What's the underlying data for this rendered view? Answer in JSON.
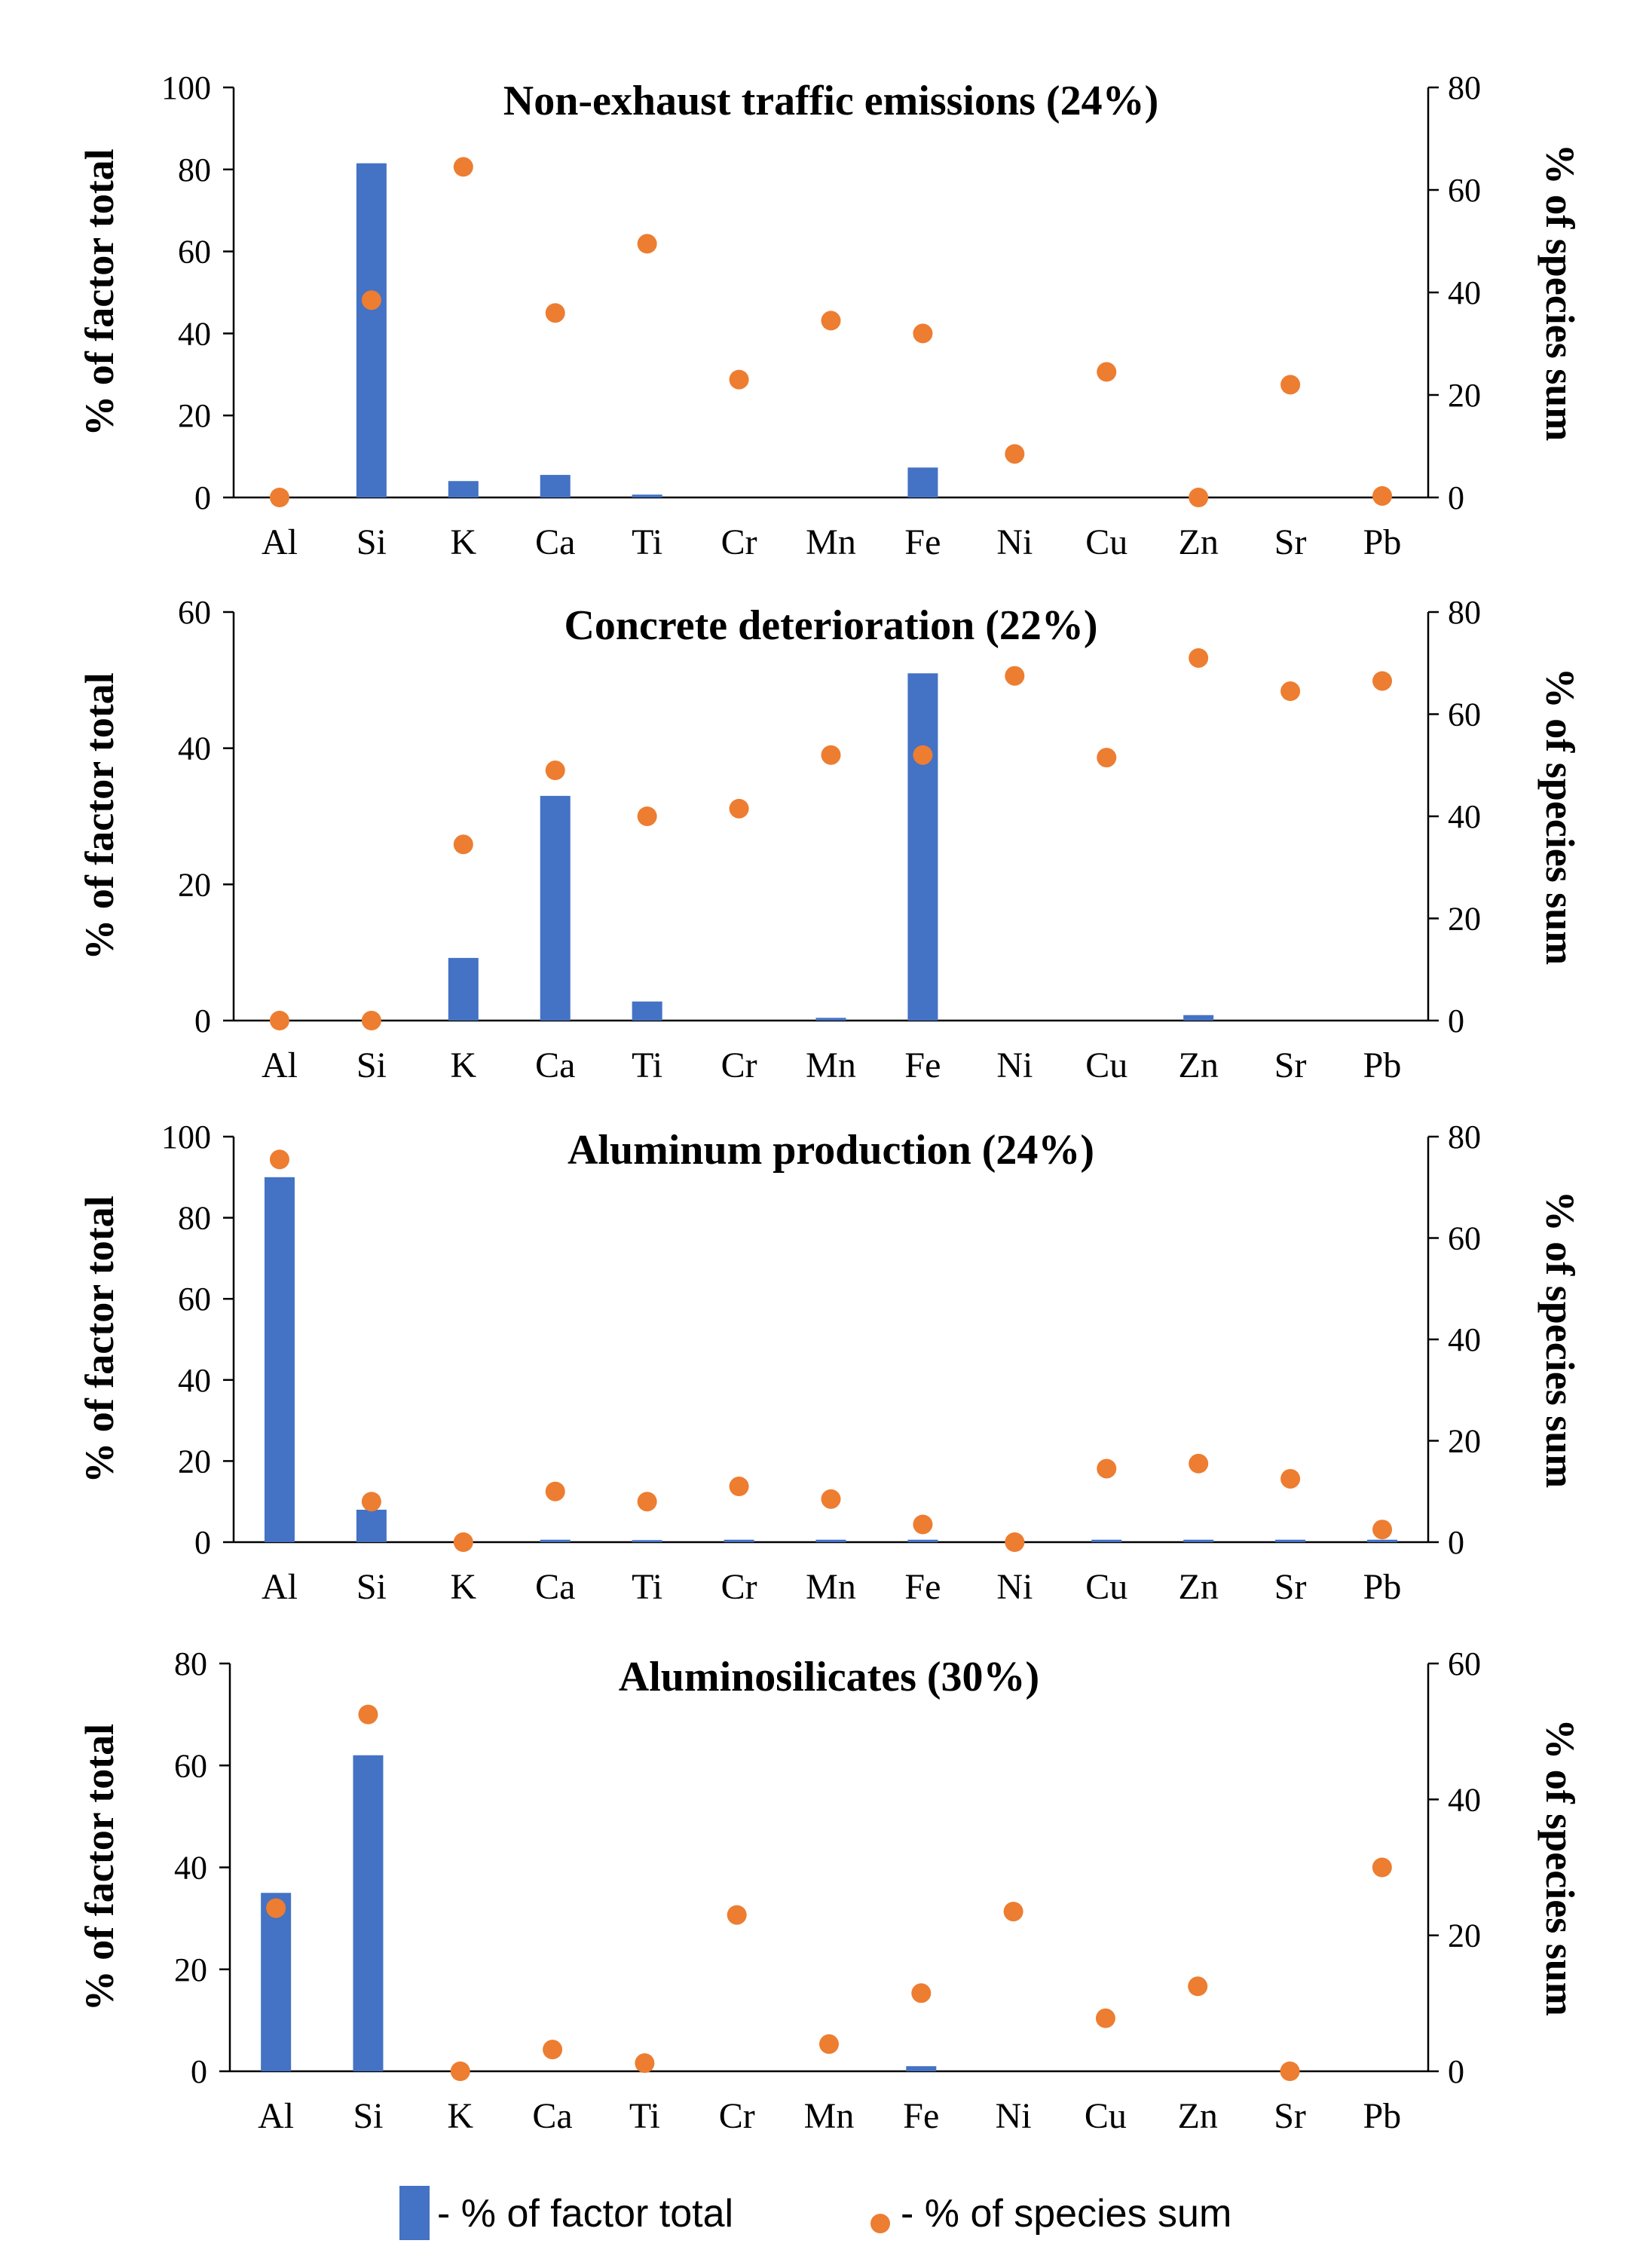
{
  "legend": {
    "bar_label": "- % of factor total",
    "dot_label": "- % of species sum",
    "bar_color": "#4472C4",
    "dot_color": "#ED7D31"
  },
  "chart_data": [
    {
      "type": "bar",
      "title": "Non-exhaust traffic emissions (24%)",
      "categories": [
        "Al",
        "Si",
        "K",
        "Ca",
        "Ti",
        "Cr",
        "Mn",
        "Fe",
        "Ni",
        "Cu",
        "Zn",
        "Sr",
        "Pb"
      ],
      "ylabel": "% of factor total",
      "y2label": "% of species sum",
      "ylim": [
        0,
        100
      ],
      "yticks": [
        0,
        20,
        40,
        60,
        80,
        100
      ],
      "y2lim": [
        0,
        80
      ],
      "y2ticks": [
        0,
        20,
        40,
        60,
        80
      ],
      "series": [
        {
          "name": "% of factor total",
          "axis": "left",
          "type": "bar",
          "values": [
            0,
            81.5,
            4,
            5.5,
            0.7,
            0,
            0,
            7.3,
            0,
            0,
            0,
            0,
            0
          ]
        },
        {
          "name": "% of species sum",
          "axis": "right",
          "type": "scatter",
          "values": [
            0,
            38.5,
            64.5,
            36,
            49.5,
            23,
            34.5,
            32,
            8.5,
            24.5,
            0,
            22,
            0.3
          ]
        }
      ]
    },
    {
      "type": "bar",
      "title": "Concrete deterioration (22%)",
      "categories": [
        "Al",
        "Si",
        "K",
        "Ca",
        "Ti",
        "Cr",
        "Mn",
        "Fe",
        "Ni",
        "Cu",
        "Zn",
        "Sr",
        "Pb"
      ],
      "ylabel": "% of factor total",
      "y2label": "% of species sum",
      "ylim": [
        0,
        60
      ],
      "yticks": [
        0,
        20,
        40,
        60
      ],
      "y2lim": [
        0,
        80
      ],
      "y2ticks": [
        0,
        20,
        40,
        60,
        80
      ],
      "series": [
        {
          "name": "% of factor total",
          "axis": "left",
          "type": "bar",
          "values": [
            0,
            0,
            9.2,
            33,
            2.8,
            0,
            0.4,
            51,
            0,
            0,
            0.8,
            0,
            0
          ]
        },
        {
          "name": "% of species sum",
          "axis": "right",
          "type": "scatter",
          "values": [
            0,
            0,
            34.5,
            49,
            40,
            41.5,
            52,
            52,
            67.5,
            51.5,
            71,
            64.5,
            66.5
          ]
        }
      ]
    },
    {
      "type": "bar",
      "title": "Aluminum  production (24%)",
      "categories": [
        "Al",
        "Si",
        "K",
        "Ca",
        "Ti",
        "Cr",
        "Mn",
        "Fe",
        "Ni",
        "Cu",
        "Zn",
        "Sr",
        "Pb"
      ],
      "ylabel": "% of factor total",
      "y2label": "% of species sum",
      "ylim": [
        0,
        100
      ],
      "yticks": [
        0,
        20,
        40,
        60,
        80,
        100
      ],
      "y2lim": [
        0,
        80
      ],
      "y2ticks": [
        0,
        20,
        40,
        60,
        80
      ],
      "series": [
        {
          "name": "% of factor total",
          "axis": "left",
          "type": "bar",
          "values": [
            90,
            8,
            0,
            0.6,
            0.5,
            0.6,
            0.6,
            0.6,
            0,
            0.6,
            0.6,
            0.6,
            0.6
          ]
        },
        {
          "name": "% of species sum",
          "axis": "right",
          "type": "scatter",
          "values": [
            75.5,
            8,
            0,
            10,
            8,
            11,
            8.5,
            3.5,
            0,
            14.5,
            15.5,
            12.5,
            2.5
          ]
        }
      ]
    },
    {
      "type": "bar",
      "title": "Aluminosilicates (30%)",
      "categories": [
        "Al",
        "Si",
        "K",
        "Ca",
        "Ti",
        "Cr",
        "Mn",
        "Fe",
        "Ni",
        "Cu",
        "Zn",
        "Sr",
        "Pb"
      ],
      "ylabel": "% of factor total",
      "y2label": "% of species sum",
      "ylim": [
        0,
        80
      ],
      "yticks": [
        0,
        20,
        40,
        60,
        80
      ],
      "y2lim": [
        0,
        60
      ],
      "y2ticks": [
        0,
        20,
        40,
        60
      ],
      "series": [
        {
          "name": "% of factor total",
          "axis": "left",
          "type": "bar",
          "values": [
            35,
            62,
            0,
            0,
            0,
            0,
            0,
            1,
            0,
            0,
            0,
            0,
            0
          ]
        },
        {
          "name": "% of species sum",
          "axis": "right",
          "type": "scatter",
          "values": [
            24,
            52.5,
            0,
            3.2,
            1.2,
            23,
            4,
            11.5,
            23.5,
            7.8,
            12.5,
            0,
            30
          ]
        }
      ]
    }
  ]
}
